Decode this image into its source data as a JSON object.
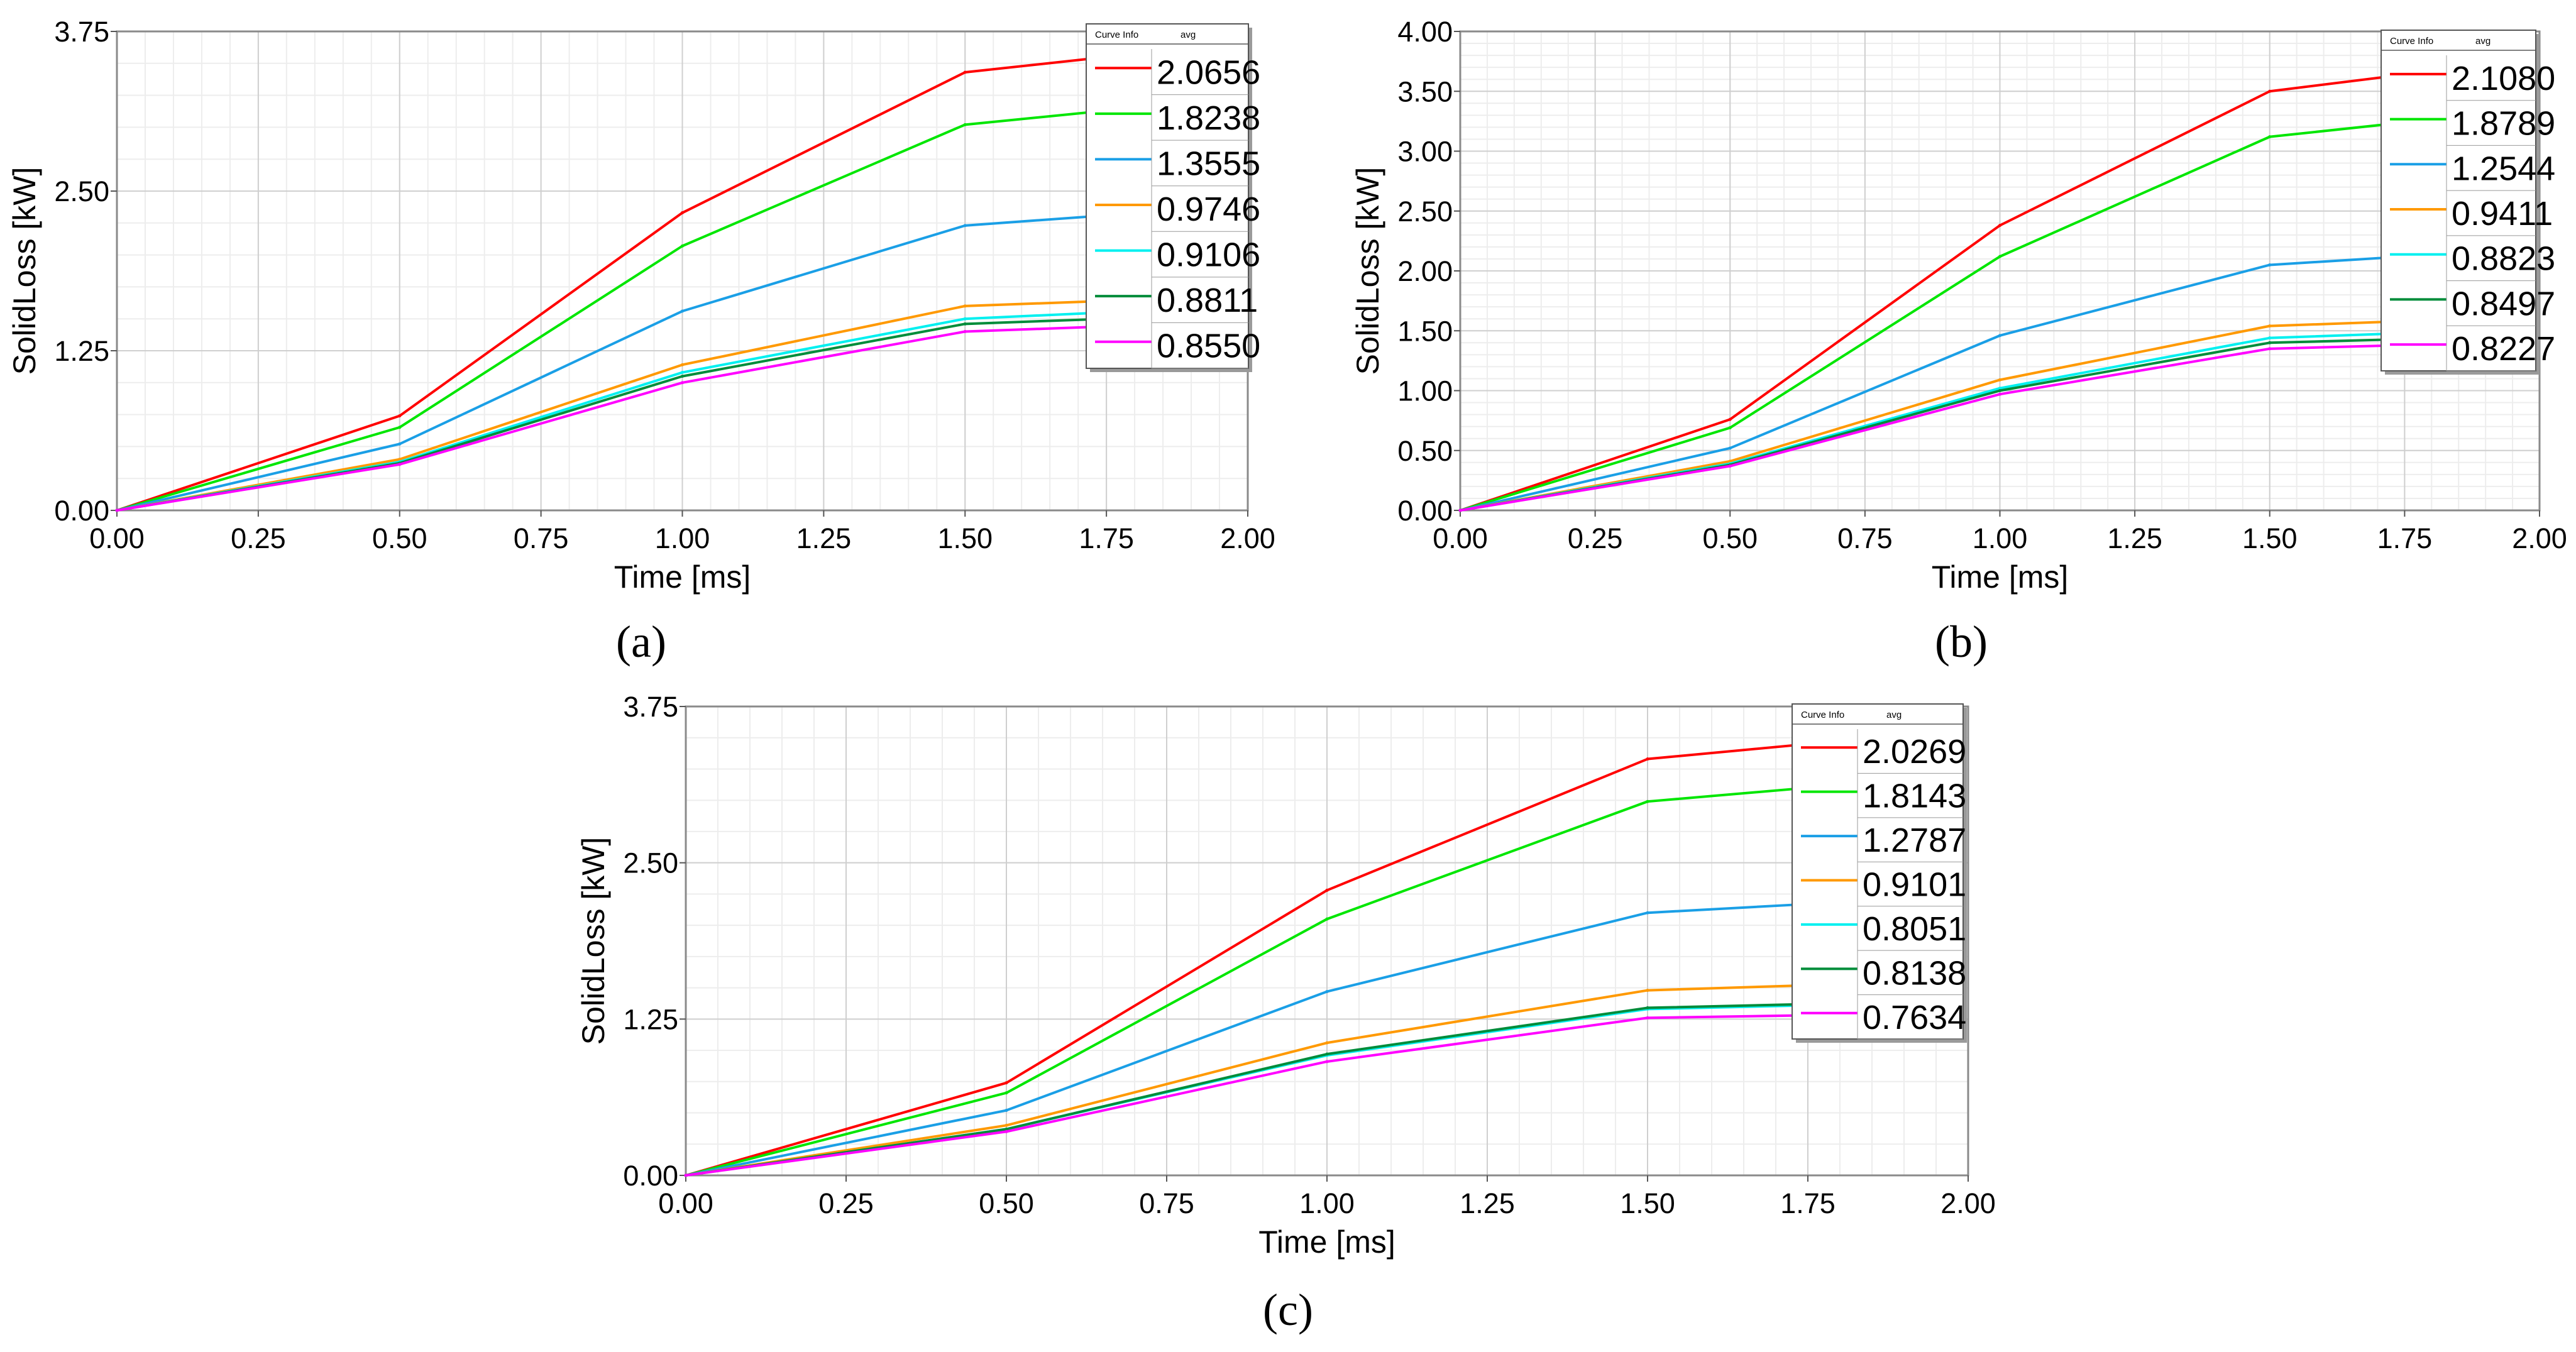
{
  "figure_labels": [
    "(a)",
    "(b)",
    "(c)"
  ],
  "chart_data": [
    {
      "type": "line",
      "panel": "a",
      "title": "",
      "xlabel": "Time [ms]",
      "ylabel": "SolidLoss [kW]",
      "xlim": [
        0,
        2.0
      ],
      "ylim": [
        0,
        3.75
      ],
      "xticks": [
        "0.00",
        "0.25",
        "0.50",
        "0.75",
        "1.00",
        "1.25",
        "1.50",
        "1.75",
        "2.00"
      ],
      "yticks": [
        "0.00",
        "1.25",
        "2.50",
        "3.75"
      ],
      "legend": {
        "header": [
          "Curve Info",
          "avg"
        ],
        "position": "top-right"
      },
      "x": [
        0,
        0.5,
        1.0,
        1.5,
        1.75
      ],
      "series": [
        {
          "name": "2.0656",
          "color": "#ff0000",
          "values": [
            0,
            0.74,
            2.33,
            3.43,
            3.55
          ]
        },
        {
          "name": "1.8238",
          "color": "#00e600",
          "values": [
            0,
            0.65,
            2.07,
            3.02,
            3.13
          ]
        },
        {
          "name": "1.3555",
          "color": "#1a9fe6",
          "values": [
            0,
            0.52,
            1.56,
            2.23,
            2.31
          ]
        },
        {
          "name": "0.9746",
          "color": "#ff9900",
          "values": [
            0,
            0.4,
            1.14,
            1.6,
            1.64
          ]
        },
        {
          "name": "0.9106",
          "color": "#00f0f0",
          "values": [
            0,
            0.38,
            1.08,
            1.5,
            1.55
          ]
        },
        {
          "name": "0.8811",
          "color": "#008c3a",
          "values": [
            0,
            0.37,
            1.05,
            1.46,
            1.5
          ]
        },
        {
          "name": "0.8550",
          "color": "#ff00ff",
          "values": [
            0,
            0.36,
            1.0,
            1.4,
            1.44
          ]
        }
      ]
    },
    {
      "type": "line",
      "panel": "b",
      "title": "",
      "xlabel": "Time [ms]",
      "ylabel": "SolidLoss [kW]",
      "xlim": [
        0,
        2.0
      ],
      "ylim": [
        0,
        4.0
      ],
      "xticks": [
        "0.00",
        "0.25",
        "0.50",
        "0.75",
        "1.00",
        "1.25",
        "1.50",
        "1.75",
        "2.00"
      ],
      "yticks": [
        "0.00",
        "0.50",
        "1.00",
        "1.50",
        "2.00",
        "2.50",
        "3.00",
        "3.50",
        "4.00"
      ],
      "legend": {
        "header": [
          "Curve Info",
          "avg"
        ],
        "position": "top-right"
      },
      "x": [
        0,
        0.5,
        1.0,
        1.5,
        1.75
      ],
      "series": [
        {
          "name": "2.1080",
          "color": "#ff0000",
          "values": [
            0,
            0.76,
            2.38,
            3.5,
            3.64
          ]
        },
        {
          "name": "1.8789",
          "color": "#00e600",
          "values": [
            0,
            0.69,
            2.12,
            3.12,
            3.24
          ]
        },
        {
          "name": "1.2544",
          "color": "#1a9fe6",
          "values": [
            0,
            0.52,
            1.46,
            2.05,
            2.12
          ]
        },
        {
          "name": "0.9411",
          "color": "#ff9900",
          "values": [
            0,
            0.41,
            1.09,
            1.54,
            1.58
          ]
        },
        {
          "name": "0.8823",
          "color": "#00f0f0",
          "values": [
            0,
            0.39,
            1.02,
            1.44,
            1.48
          ]
        },
        {
          "name": "0.8497",
          "color": "#008c3a",
          "values": [
            0,
            0.38,
            1.0,
            1.4,
            1.43
          ]
        },
        {
          "name": "0.8227",
          "color": "#ff00ff",
          "values": [
            0,
            0.37,
            0.97,
            1.35,
            1.38
          ]
        }
      ]
    },
    {
      "type": "line",
      "panel": "c",
      "title": "",
      "xlabel": "Time [ms]",
      "ylabel": "SolidLoss [kW]",
      "xlim": [
        0,
        2.0
      ],
      "ylim": [
        0,
        3.75
      ],
      "xticks": [
        "0.00",
        "0.25",
        "0.50",
        "0.75",
        "1.00",
        "1.25",
        "1.50",
        "1.75",
        "2.00"
      ],
      "yticks": [
        "0.00",
        "1.25",
        "2.50",
        "3.75"
      ],
      "legend": {
        "header": [
          "Curve Info",
          "avg"
        ],
        "position": "top-right"
      },
      "x": [
        0,
        0.5,
        1.0,
        1.5,
        1.75
      ],
      "series": [
        {
          "name": "2.0269",
          "color": "#ff0000",
          "values": [
            0,
            0.74,
            2.28,
            3.33,
            3.45
          ]
        },
        {
          "name": "1.8143",
          "color": "#00e600",
          "values": [
            0,
            0.66,
            2.05,
            2.99,
            3.1
          ]
        },
        {
          "name": "1.2787",
          "color": "#1a9fe6",
          "values": [
            0,
            0.52,
            1.47,
            2.1,
            2.17
          ]
        },
        {
          "name": "0.9101",
          "color": "#ff9900",
          "values": [
            0,
            0.4,
            1.06,
            1.48,
            1.52
          ]
        },
        {
          "name": "0.8051",
          "color": "#00f0f0",
          "values": [
            0,
            0.37,
            0.96,
            1.33,
            1.36
          ]
        },
        {
          "name": "0.8138",
          "color": "#008c3a",
          "values": [
            0,
            0.37,
            0.97,
            1.34,
            1.37
          ]
        },
        {
          "name": "0.7634",
          "color": "#ff00ff",
          "values": [
            0,
            0.35,
            0.91,
            1.26,
            1.28
          ]
        }
      ]
    }
  ]
}
